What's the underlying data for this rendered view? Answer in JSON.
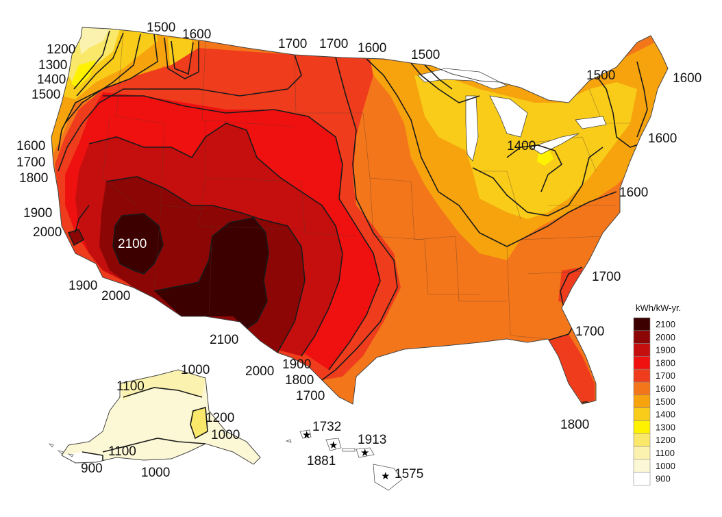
{
  "map": {
    "colors": {
      "c900": "#ffffff",
      "c1000": "#fcf8d6",
      "c1100": "#fbf2b0",
      "c1200": "#f9e86a",
      "c1300": "#fff200",
      "c1400": "#f8cc19",
      "c1500": "#f6a30d",
      "c1600": "#f3761a",
      "c1700": "#ee3c1c",
      "c1800": "#ef1010",
      "c1900": "#c50e0e",
      "c2000": "#8c0606",
      "c2100": "#3c0000",
      "contour": "#1a1a1a"
    },
    "contour_labels": {
      "nw_1500": "1500",
      "nw_1600": "1600",
      "n_1700a": "1700",
      "n_1700b": "1700",
      "n_1600": "1600",
      "ne_1500a": "1500",
      "w_1200": "1200",
      "w_1300": "1300",
      "w_1400": "1400",
      "w_1500": "1500",
      "ne_1500b": "1500",
      "ne_1600a": "1600",
      "w_1600": "1600",
      "w_1700": "1700",
      "w_1800": "1800",
      "ne_1600b": "1600",
      "ne_1400": "1400",
      "e_1600": "1600",
      "w_1900": "1900",
      "w_2000": "2000",
      "sw_2100": "2100",
      "sw_1900": "1900",
      "sw_2000": "2000",
      "se_1700a": "1700",
      "se_1700b": "1700",
      "tx_2100": "2100",
      "tx_2000": "2000",
      "tx_1900": "1900",
      "tx_1800": "1800",
      "tx_1700": "1700",
      "fl_1800": "1800",
      "ak_1000a": "1000",
      "ak_1100a": "1100",
      "ak_1200": "1200",
      "ak_1000b": "1000",
      "ak_1100b": "1100",
      "ak_900": "900",
      "ak_1000c": "1000"
    },
    "hawaii_stations": {
      "s1": "1732",
      "s2": "1881",
      "s3": "1913",
      "s4": "1575"
    },
    "legend": {
      "title": "kWh/kW-yr.",
      "items": [
        {
          "label": "2100",
          "color": "#3c0000"
        },
        {
          "label": "2000",
          "color": "#8c0606"
        },
        {
          "label": "1900",
          "color": "#c50e0e"
        },
        {
          "label": "1800",
          "color": "#ef1010"
        },
        {
          "label": "1700",
          "color": "#ee3c1c"
        },
        {
          "label": "1600",
          "color": "#f3761a"
        },
        {
          "label": "1500",
          "color": "#f6a30d"
        },
        {
          "label": "1400",
          "color": "#f8cc19"
        },
        {
          "label": "1300",
          "color": "#fff200"
        },
        {
          "label": "1200",
          "color": "#f9e86a"
        },
        {
          "label": "1100",
          "color": "#fbf2b0"
        },
        {
          "label": "1000",
          "color": "#fcf8d6"
        },
        {
          "label": "900",
          "color": "#ffffff"
        }
      ]
    }
  }
}
